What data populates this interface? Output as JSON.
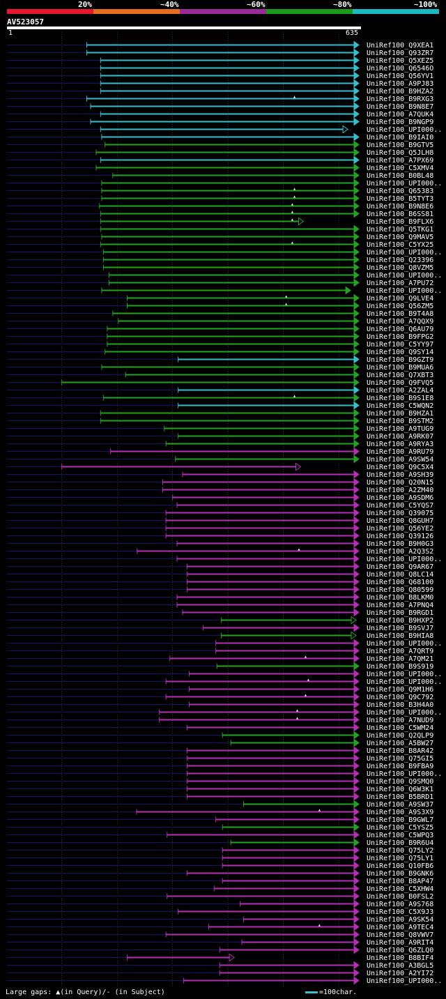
{
  "legend": {
    "labels": [
      "20%",
      "~40%",
      "~60%",
      "~80%",
      "~100%"
    ],
    "colors": [
      "#e8162e",
      "#e4701e",
      "#9a2a9a",
      "#1a9a1a",
      "#1cb8c4"
    ]
  },
  "query": {
    "id": "AV523057",
    "start": "1",
    "end": "635"
  },
  "colors": {
    "cyan": "#33c0cc",
    "green": "#22a322",
    "magenta": "#b52fb5",
    "background_line": "#13136a",
    "grid": "#555555"
  },
  "chart_data": {
    "type": "alignment-overview",
    "x_range": [
      1,
      635
    ],
    "hits": [
      {
        "name": "UniRef100_Q9XEA1",
        "color": "cyan",
        "start": 145,
        "end": 635,
        "arrow": "filled"
      },
      {
        "name": "UniRef100_Q93ZR7",
        "color": "cyan",
        "start": 145,
        "end": 635,
        "arrow": "filled"
      },
      {
        "name": "UniRef100_Q5XEZ5",
        "color": "cyan",
        "start": 170,
        "end": 635,
        "arrow": "filled"
      },
      {
        "name": "UniRef100_Q6546O",
        "color": "cyan",
        "start": 170,
        "end": 635,
        "arrow": "filled"
      },
      {
        "name": "UniRef100_Q56YV1",
        "color": "cyan",
        "start": 170,
        "end": 635,
        "arrow": "filled"
      },
      {
        "name": "UniRef100_A9PJ83",
        "color": "cyan",
        "start": 170,
        "end": 635,
        "arrow": "filled"
      },
      {
        "name": "UniRef100_B9HZA2",
        "color": "cyan",
        "start": 170,
        "end": 635,
        "arrow": "filled"
      },
      {
        "name": "UniRef100_B9RXG3",
        "color": "cyan",
        "start": 145,
        "end": 635,
        "arrow": "filled",
        "gap": 520
      },
      {
        "name": "UniRef100_B9N8E7",
        "color": "cyan",
        "start": 152,
        "end": 635,
        "arrow": "filled"
      },
      {
        "name": "UniRef100_A7QUK4",
        "color": "cyan",
        "start": 170,
        "end": 635,
        "arrow": "filled"
      },
      {
        "name": "UniRef100_B9NGP9",
        "color": "cyan",
        "start": 152,
        "end": 635,
        "arrow": "filled"
      },
      {
        "name": "UniRef100_UPI000..",
        "color": "cyan",
        "start": 170,
        "end": 615,
        "arrow": "open"
      },
      {
        "name": "UniRef100_B9IAI0",
        "color": "cyan",
        "start": 172,
        "end": 635,
        "arrow": "filled"
      },
      {
        "name": "UniRef100_B9GTV5",
        "color": "green",
        "start": 178,
        "end": 635,
        "arrow": "filled"
      },
      {
        "name": "UniRef100_Q5JLH8",
        "color": "green",
        "start": 162,
        "end": 635,
        "arrow": "filled"
      },
      {
        "name": "UniRef100_A7PX69",
        "color": "cyan",
        "start": 170,
        "end": 635,
        "arrow": "filled"
      },
      {
        "name": "UniRef100_C5XMV4",
        "color": "green",
        "start": 162,
        "end": 635,
        "arrow": "filled"
      },
      {
        "name": "UniRef100_B0BL48",
        "color": "green",
        "start": 192,
        "end": 635,
        "arrow": "filled"
      },
      {
        "name": "UniRef100_UPI000..",
        "color": "green",
        "start": 172,
        "end": 635,
        "arrow": "filled"
      },
      {
        "name": "UniRef100_Q65383",
        "color": "green",
        "start": 172,
        "end": 635,
        "arrow": "filled",
        "gap": 520
      },
      {
        "name": "UniRef100_B5TYT3",
        "color": "green",
        "start": 172,
        "end": 635,
        "arrow": "filled",
        "gap": 520
      },
      {
        "name": "UniRef100_B9N8E6",
        "color": "green",
        "start": 168,
        "end": 635,
        "arrow": "filled",
        "gap": 516
      },
      {
        "name": "UniRef100_B6SS81",
        "color": "green",
        "start": 170,
        "end": 635,
        "arrow": "filled",
        "gap": 516
      },
      {
        "name": "UniRef100_B9FLX6",
        "color": "green",
        "start": 170,
        "end": 535,
        "arrow": "open",
        "gap": 516
      },
      {
        "name": "UniRef100_Q5TKG1",
        "color": "green",
        "start": 170,
        "end": 635,
        "arrow": "filled"
      },
      {
        "name": "UniRef100_Q9MAV5",
        "color": "green",
        "start": 172,
        "end": 635,
        "arrow": "filled"
      },
      {
        "name": "UniRef100_C5YX25",
        "color": "green",
        "start": 170,
        "end": 635,
        "arrow": "filled",
        "gap": 516
      },
      {
        "name": "UniRef100_UPI000..",
        "color": "green",
        "start": 175,
        "end": 635,
        "arrow": "filled"
      },
      {
        "name": "UniRef100_Q23396",
        "color": "green",
        "start": 175,
        "end": 635,
        "arrow": "filled"
      },
      {
        "name": "UniRef100_Q8VZM5",
        "color": "green",
        "start": 175,
        "end": 635,
        "arrow": "filled"
      },
      {
        "name": "UniRef100_UPI000..",
        "color": "green",
        "start": 185,
        "end": 635,
        "arrow": "filled"
      },
      {
        "name": "UniRef100_A7PU72",
        "color": "green",
        "start": 185,
        "end": 635,
        "arrow": "filled"
      },
      {
        "name": "UniRef100_UPI000..",
        "color": "green",
        "start": 172,
        "end": 620,
        "arrow": "filled"
      },
      {
        "name": "UniRef100_Q9LVE4",
        "color": "green",
        "start": 218,
        "end": 635,
        "arrow": "filled",
        "gap": 505
      },
      {
        "name": "UniRef100_Q56ZM5",
        "color": "green",
        "start": 218,
        "end": 635,
        "arrow": "filled",
        "gap": 505
      },
      {
        "name": "UniRef100_B9T4A8",
        "color": "green",
        "start": 192,
        "end": 635,
        "arrow": "filled"
      },
      {
        "name": "UniRef100_A7QQX9",
        "color": "green",
        "start": 202,
        "end": 635,
        "arrow": "filled"
      },
      {
        "name": "UniRef100_Q6AU79",
        "color": "green",
        "start": 182,
        "end": 635,
        "arrow": "filled"
      },
      {
        "name": "UniRef100_B9FPG2",
        "color": "green",
        "start": 182,
        "end": 635,
        "arrow": "filled"
      },
      {
        "name": "UniRef100_C5YY97",
        "color": "green",
        "start": 182,
        "end": 635,
        "arrow": "filled"
      },
      {
        "name": "UniRef100_Q9SY14",
        "color": "green",
        "start": 178,
        "end": 635,
        "arrow": "filled"
      },
      {
        "name": "UniRef100_B9GZT9",
        "color": "cyan",
        "start": 310,
        "end": 635,
        "arrow": "filled"
      },
      {
        "name": "UniRef100_B9MUA6",
        "color": "green",
        "start": 172,
        "end": 635,
        "arrow": "filled"
      },
      {
        "name": "UniRef100_Q7XBT3",
        "color": "green",
        "start": 215,
        "end": 635,
        "arrow": "filled"
      },
      {
        "name": "UniRef100_Q9FVQ5",
        "color": "green",
        "start": 100,
        "end": 635,
        "arrow": "filled"
      },
      {
        "name": "UniRef100_A2ZAL4",
        "color": "cyan",
        "start": 310,
        "end": 635,
        "arrow": "filled"
      },
      {
        "name": "UniRef100_B9S1E8",
        "color": "green",
        "start": 175,
        "end": 635,
        "arrow": "filled",
        "gap": 520
      },
      {
        "name": "UniRef100_C5WQN2",
        "color": "cyan",
        "start": 310,
        "end": 635,
        "arrow": "filled"
      },
      {
        "name": "UniRef100_B9HZA1",
        "color": "green",
        "start": 170,
        "end": 635,
        "arrow": "filled"
      },
      {
        "name": "UniRef100_B9STM2",
        "color": "green",
        "start": 170,
        "end": 635,
        "arrow": "filled"
      },
      {
        "name": "UniRef100_A9TUG9",
        "color": "green",
        "start": 285,
        "end": 635,
        "arrow": "filled"
      },
      {
        "name": "UniRef100_A9RK07",
        "color": "green",
        "start": 310,
        "end": 635,
        "arrow": "filled"
      },
      {
        "name": "UniRef100_A9RYA3",
        "color": "green",
        "start": 288,
        "end": 635,
        "arrow": "filled"
      },
      {
        "name": "UniRef100_A9RU79",
        "color": "magenta",
        "start": 188,
        "end": 635,
        "arrow": "filled"
      },
      {
        "name": "UniRef100_A9SW54",
        "color": "green",
        "start": 305,
        "end": 635,
        "arrow": "filled"
      },
      {
        "name": "UniRef100_Q9C5X4",
        "color": "magenta",
        "start": 100,
        "end": 530,
        "arrow": "open"
      },
      {
        "name": "UniRef100_A9SH39",
        "color": "magenta",
        "start": 318,
        "end": 635,
        "arrow": "filled"
      },
      {
        "name": "UniRef100_Q20N15",
        "color": "magenta",
        "start": 282,
        "end": 635,
        "arrow": "filled"
      },
      {
        "name": "UniRef100_A2ZM40",
        "color": "magenta",
        "start": 282,
        "end": 635,
        "arrow": "filled"
      },
      {
        "name": "UniRef100_A9SDM6",
        "color": "magenta",
        "start": 300,
        "end": 635,
        "arrow": "filled"
      },
      {
        "name": "UniRef100_C5YQS7",
        "color": "magenta",
        "start": 308,
        "end": 635,
        "arrow": "filled"
      },
      {
        "name": "UniRef100_Q39075",
        "color": "magenta",
        "start": 288,
        "end": 635,
        "arrow": "filled"
      },
      {
        "name": "UniRef100_Q8GUH7",
        "color": "magenta",
        "start": 288,
        "end": 635,
        "arrow": "filled"
      },
      {
        "name": "UniRef100_Q56YE2",
        "color": "magenta",
        "start": 288,
        "end": 635,
        "arrow": "filled"
      },
      {
        "name": "UniRef100_Q39126",
        "color": "magenta",
        "start": 288,
        "end": 635,
        "arrow": "filled"
      },
      {
        "name": "UniRef100_B9H0G3",
        "color": "magenta",
        "start": 308,
        "end": 635,
        "arrow": "filled"
      },
      {
        "name": "UniRef100_A2Q3S2",
        "color": "magenta",
        "start": 236,
        "end": 635,
        "arrow": "filled",
        "gap": 528
      },
      {
        "name": "UniRef100_UPI000..",
        "color": "magenta",
        "start": 308,
        "end": 635,
        "arrow": "filled"
      },
      {
        "name": "UniRef100_Q9AR67",
        "color": "magenta",
        "start": 326,
        "end": 635,
        "arrow": "filled"
      },
      {
        "name": "UniRef100_Q8LC14",
        "color": "magenta",
        "start": 326,
        "end": 635,
        "arrow": "filled"
      },
      {
        "name": "UniRef100_Q68100",
        "color": "magenta",
        "start": 326,
        "end": 635,
        "arrow": "filled"
      },
      {
        "name": "UniRef100_Q80599",
        "color": "magenta",
        "start": 326,
        "end": 635,
        "arrow": "filled"
      },
      {
        "name": "UniRef100_B8LKM0",
        "color": "magenta",
        "start": 308,
        "end": 635,
        "arrow": "filled"
      },
      {
        "name": "UniRef100_A7PNQ4",
        "color": "magenta",
        "start": 308,
        "end": 635,
        "arrow": "filled"
      },
      {
        "name": "UniRef100_B9RGD1",
        "color": "magenta",
        "start": 318,
        "end": 635,
        "arrow": "filled"
      },
      {
        "name": "UniRef100_B9HXP2",
        "color": "green",
        "start": 388,
        "end": 630,
        "arrow": "open"
      },
      {
        "name": "UniRef100_B9SVJ7",
        "color": "magenta",
        "start": 355,
        "end": 635,
        "arrow": "filled"
      },
      {
        "name": "UniRef100_B9HIA8",
        "color": "green",
        "start": 388,
        "end": 630,
        "arrow": "open"
      },
      {
        "name": "UniRef100_UPI000..",
        "color": "magenta",
        "start": 378,
        "end": 635,
        "arrow": "filled"
      },
      {
        "name": "UniRef100_A7QRT9",
        "color": "magenta",
        "start": 378,
        "end": 635,
        "arrow": "filled"
      },
      {
        "name": "UniRef100_A7QM21",
        "color": "magenta",
        "start": 295,
        "end": 635,
        "arrow": "filled",
        "gap": 540
      },
      {
        "name": "UniRef100_B9S919",
        "color": "green",
        "start": 380,
        "end": 635,
        "arrow": "filled"
      },
      {
        "name": "UniRef100_UPI000..",
        "color": "magenta",
        "start": 330,
        "end": 635,
        "arrow": "filled"
      },
      {
        "name": "UniRef100_UPI000..",
        "color": "magenta",
        "start": 288,
        "end": 635,
        "arrow": "filled",
        "gap": 545
      },
      {
        "name": "UniRef100_Q9M1H6",
        "color": "magenta",
        "start": 330,
        "end": 635,
        "arrow": "filled"
      },
      {
        "name": "UniRef100_Q9C792",
        "color": "magenta",
        "start": 288,
        "end": 635,
        "arrow": "filled",
        "gap": 540
      },
      {
        "name": "UniRef100_B3H4A0",
        "color": "magenta",
        "start": 330,
        "end": 635,
        "arrow": "filled"
      },
      {
        "name": "UniRef100_UPI000..",
        "color": "magenta",
        "start": 276,
        "end": 635,
        "arrow": "filled",
        "gap": 525
      },
      {
        "name": "UniRef100_A7NUD9",
        "color": "magenta",
        "start": 276,
        "end": 635,
        "arrow": "filled",
        "gap": 525
      },
      {
        "name": "UniRef100_C5WM24",
        "color": "magenta",
        "start": 326,
        "end": 635,
        "arrow": "filled"
      },
      {
        "name": "UniRef100_Q2QLP9",
        "color": "green",
        "start": 390,
        "end": 635,
        "arrow": "filled"
      },
      {
        "name": "UniRef100_A5BW27",
        "color": "green",
        "start": 405,
        "end": 635,
        "arrow": "filled"
      },
      {
        "name": "UniRef100_B8AR42",
        "color": "magenta",
        "start": 326,
        "end": 635,
        "arrow": "filled"
      },
      {
        "name": "UniRef100_Q75GI5",
        "color": "magenta",
        "start": 326,
        "end": 635,
        "arrow": "filled"
      },
      {
        "name": "UniRef100_B9FBA9",
        "color": "magenta",
        "start": 326,
        "end": 635,
        "arrow": "filled"
      },
      {
        "name": "UniRef100_UPI000..",
        "color": "magenta",
        "start": 326,
        "end": 635,
        "arrow": "filled"
      },
      {
        "name": "UniRef100_Q9SMQ0",
        "color": "magenta",
        "start": 326,
        "end": 635,
        "arrow": "filled"
      },
      {
        "name": "UniRef100_Q6W3K1",
        "color": "magenta",
        "start": 326,
        "end": 635,
        "arrow": "filled"
      },
      {
        "name": "UniRef100_B5BRD1",
        "color": "magenta",
        "start": 326,
        "end": 635,
        "arrow": "filled"
      },
      {
        "name": "UniRef100_A9SW37",
        "color": "green",
        "start": 428,
        "end": 635,
        "arrow": "filled"
      },
      {
        "name": "UniRef100_A9S3X9",
        "color": "magenta",
        "start": 235,
        "end": 635,
        "arrow": "filled",
        "gap": 565
      },
      {
        "name": "UniRef100_B9GWL7",
        "color": "magenta",
        "start": 378,
        "end": 635,
        "arrow": "filled"
      },
      {
        "name": "UniRef100_C5YSZ5",
        "color": "green",
        "start": 390,
        "end": 635,
        "arrow": "filled"
      },
      {
        "name": "UniRef100_C5WPQ3",
        "color": "magenta",
        "start": 290,
        "end": 635,
        "arrow": "filled"
      },
      {
        "name": "UniRef100_B9R6U4",
        "color": "green",
        "start": 405,
        "end": 635,
        "arrow": "filled"
      },
      {
        "name": "UniRef100_Q75LY2",
        "color": "magenta",
        "start": 390,
        "end": 635,
        "arrow": "filled"
      },
      {
        "name": "UniRef100_Q75LY1",
        "color": "magenta",
        "start": 390,
        "end": 635,
        "arrow": "filled"
      },
      {
        "name": "UniRef100_Q10FB6",
        "color": "magenta",
        "start": 390,
        "end": 635,
        "arrow": "filled"
      },
      {
        "name": "UniRef100_B9GNK6",
        "color": "magenta",
        "start": 326,
        "end": 635,
        "arrow": "filled"
      },
      {
        "name": "UniRef100_B8AP47",
        "color": "magenta",
        "start": 390,
        "end": 635,
        "arrow": "filled"
      },
      {
        "name": "UniRef100_C5XHW4",
        "color": "magenta",
        "start": 375,
        "end": 635,
        "arrow": "filled"
      },
      {
        "name": "UniRef100_B0FSL2",
        "color": "magenta",
        "start": 290,
        "end": 635,
        "arrow": "filled"
      },
      {
        "name": "UniRef100_A9S768",
        "color": "magenta",
        "start": 422,
        "end": 635,
        "arrow": "filled"
      },
      {
        "name": "UniRef100_C5X9J3",
        "color": "magenta",
        "start": 310,
        "end": 635,
        "arrow": "filled"
      },
      {
        "name": "UniRef100_A9SK54",
        "color": "magenta",
        "start": 428,
        "end": 635,
        "arrow": "filled"
      },
      {
        "name": "UniRef100_A9TEC4",
        "color": "magenta",
        "start": 365,
        "end": 635,
        "arrow": "filled",
        "gap": 565
      },
      {
        "name": "UniRef100_Q8VWV7",
        "color": "magenta",
        "start": 288,
        "end": 635,
        "arrow": "filled"
      },
      {
        "name": "UniRef100_A9RIT4",
        "color": "magenta",
        "start": 425,
        "end": 635,
        "arrow": "filled"
      },
      {
        "name": "UniRef100_Q6ZLQ0",
        "color": "magenta",
        "start": 385,
        "end": 635,
        "arrow": "filled"
      },
      {
        "name": "UniRef100_B8BIF4",
        "color": "magenta",
        "start": 218,
        "end": 410,
        "arrow": "open"
      },
      {
        "name": "UniRef100_A3BGL5",
        "color": "magenta",
        "start": 385,
        "end": 635,
        "arrow": "filled"
      },
      {
        "name": "UniRef100_A2YI72",
        "color": "magenta",
        "start": 385,
        "end": 635,
        "arrow": "filled"
      },
      {
        "name": "UniRef100_UPI000..",
        "color": "magenta",
        "start": 320,
        "end": 635,
        "arrow": "filled"
      }
    ]
  },
  "footer": {
    "gaps_text": "Large gaps: ▲(in Query)/- (in Subject)",
    "scale_text": "=100char."
  }
}
